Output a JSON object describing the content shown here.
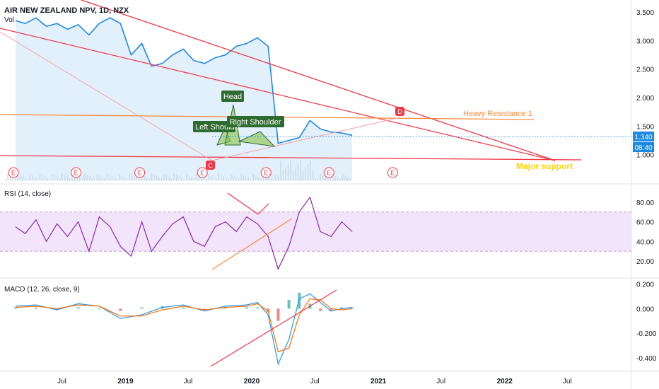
{
  "header": {
    "symbol_line": "AIR NEW ZEALAND NPV, 1D, NZX",
    "vol_label": "Vol"
  },
  "price_badges": {
    "last_price": "1.340",
    "countdown": "08:40"
  },
  "colors": {
    "price_line": "#1e88e5",
    "area_fill": "#d6e9fb",
    "trend_red": "#f23645",
    "orange": "#ff8a3d",
    "support_text": "#ffd400",
    "rsi_line": "#8e24aa",
    "rsi_band": "#f1e4fb",
    "macd_line": "#2196f3",
    "signal_line": "#ff6d00",
    "hist_pos": "#26a69a",
    "hist_neg": "#ef5350",
    "label_green": "#2e6b2e"
  },
  "annotations": {
    "head": "Head",
    "left_shoulder": "Left Shoulder",
    "right_shoulder": "Right Shoulder",
    "heavy_resistance": "Heavy Resistance 1",
    "major_support": "Major support",
    "marker_c": "C",
    "marker_d": "D",
    "earnings_marker": "E"
  },
  "x_axis": {
    "ticks": [
      "Jul",
      "2019",
      "Jul",
      "2020",
      "Jul",
      "2021",
      "Jul",
      "2022",
      "Jul"
    ]
  },
  "chart_data": [
    {
      "type": "line",
      "name": "price",
      "x_range": [
        "2018-01",
        "2022-12"
      ],
      "y_axis_ticks": [
        "3.500",
        "3.000",
        "2.500",
        "2.000",
        "1.500",
        "1.000"
      ],
      "ylim": [
        0.55,
        3.65
      ],
      "series": [
        {
          "x": [
            "2018-02",
            "2018-03",
            "2018-04",
            "2018-05",
            "2018-06",
            "2018-07",
            "2018-08",
            "2018-09",
            "2018-10",
            "2018-11",
            "2018-12",
            "2019-01",
            "2019-02",
            "2019-03",
            "2019-04",
            "2019-05",
            "2019-06",
            "2019-07",
            "2019-08",
            "2019-09",
            "2019-10",
            "2019-11",
            "2019-12",
            "2020-01",
            "2020-02",
            "2020-03",
            "2020-04",
            "2020-05",
            "2020-06",
            "2020-07",
            "2020-08",
            "2020-09",
            "2020-10"
          ],
          "values": [
            3.35,
            3.3,
            3.4,
            3.25,
            3.3,
            3.2,
            3.28,
            3.1,
            3.3,
            3.4,
            3.3,
            2.75,
            2.95,
            2.55,
            2.6,
            2.75,
            2.85,
            2.65,
            2.6,
            2.7,
            2.75,
            2.9,
            2.95,
            3.05,
            2.9,
            1.2,
            1.25,
            1.3,
            1.6,
            1.45,
            1.4,
            1.38,
            1.34
          ]
        }
      ]
    },
    {
      "type": "line",
      "name": "RSI (14, close)",
      "title": "RSI (14, close)",
      "y_axis_ticks": [
        "80.00",
        "60.00",
        "40.00",
        "20.00"
      ],
      "ylim": [
        5,
        95
      ],
      "bands": [
        30,
        70
      ],
      "series": [
        {
          "x": [
            "2018-02",
            "2018-03",
            "2018-04",
            "2018-05",
            "2018-06",
            "2018-07",
            "2018-08",
            "2018-09",
            "2018-10",
            "2018-11",
            "2018-12",
            "2019-01",
            "2019-02",
            "2019-03",
            "2019-04",
            "2019-05",
            "2019-06",
            "2019-07",
            "2019-08",
            "2019-09",
            "2019-10",
            "2019-11",
            "2019-12",
            "2020-01",
            "2020-02",
            "2020-03",
            "2020-04",
            "2020-05",
            "2020-06",
            "2020-07",
            "2020-08",
            "2020-09",
            "2020-10"
          ],
          "values": [
            55,
            48,
            62,
            40,
            58,
            45,
            60,
            30,
            65,
            55,
            35,
            25,
            60,
            30,
            45,
            58,
            65,
            40,
            35,
            55,
            60,
            50,
            65,
            58,
            45,
            12,
            35,
            70,
            85,
            50,
            45,
            60,
            50
          ]
        }
      ]
    },
    {
      "type": "line",
      "name": "MACD (12, 26, close, 9)",
      "title": "MACD (12, 26, close, 9)",
      "y_axis_ticks": [
        "0.200",
        "0.000",
        "-0.200",
        "-0.400"
      ],
      "ylim": [
        -0.48,
        0.22
      ],
      "series": [
        {
          "name": "MACD",
          "x": [
            "2018-02",
            "2018-04",
            "2018-06",
            "2018-08",
            "2018-10",
            "2018-12",
            "2019-02",
            "2019-04",
            "2019-06",
            "2019-08",
            "2019-10",
            "2019-12",
            "2020-01",
            "2020-02",
            "2020-03",
            "2020-04",
            "2020-05",
            "2020-06",
            "2020-07",
            "2020-08",
            "2020-09",
            "2020-10"
          ],
          "values": [
            0.02,
            0.03,
            -0.01,
            0.04,
            0.02,
            -0.08,
            -0.05,
            0.01,
            0.03,
            -0.02,
            0.02,
            0.03,
            0.05,
            -0.05,
            -0.45,
            -0.25,
            0.08,
            0.12,
            0.05,
            -0.02,
            0.0,
            0.01
          ]
        },
        {
          "name": "Signal",
          "x": [
            "2018-02",
            "2018-04",
            "2018-06",
            "2018-08",
            "2018-10",
            "2018-12",
            "2019-02",
            "2019-04",
            "2019-06",
            "2019-08",
            "2019-10",
            "2019-12",
            "2020-01",
            "2020-02",
            "2020-03",
            "2020-04",
            "2020-05",
            "2020-06",
            "2020-07",
            "2020-08",
            "2020-09",
            "2020-10"
          ],
          "values": [
            0.01,
            0.02,
            0.0,
            0.03,
            0.02,
            -0.06,
            -0.06,
            -0.01,
            0.02,
            -0.01,
            0.01,
            0.02,
            0.04,
            -0.02,
            -0.35,
            -0.32,
            -0.05,
            0.08,
            0.07,
            0.0,
            -0.01,
            0.0
          ]
        }
      ]
    }
  ]
}
